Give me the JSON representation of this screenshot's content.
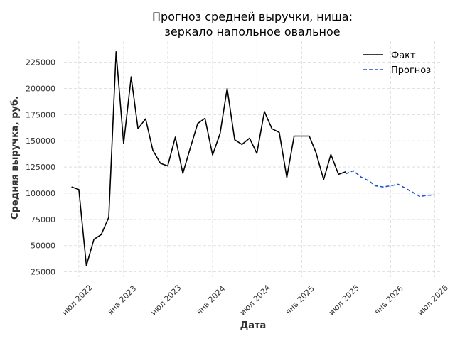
{
  "chart_data": {
    "type": "line",
    "title_lines": [
      "Прогноз средней выручки, ниша:",
      "зеркало напольное овальное"
    ],
    "xlabel": "Дата",
    "ylabel": "Средняя выручка, руб.",
    "ylim": [
      20000,
      245000
    ],
    "xlim": [
      "2022-05-01",
      "2026-08-01"
    ],
    "yticks": [
      25000,
      50000,
      75000,
      100000,
      125000,
      150000,
      175000,
      200000,
      225000
    ],
    "xticks": [
      {
        "date": "2022-07-01",
        "label": "июл 2022"
      },
      {
        "date": "2023-01-01",
        "label": "янв 2023"
      },
      {
        "date": "2023-07-01",
        "label": "июл 2023"
      },
      {
        "date": "2024-01-01",
        "label": "янв 2024"
      },
      {
        "date": "2024-07-01",
        "label": "июл 2024"
      },
      {
        "date": "2025-01-01",
        "label": "янв 2025"
      },
      {
        "date": "2025-07-01",
        "label": "июл 2025"
      },
      {
        "date": "2026-01-01",
        "label": "янв 2026"
      },
      {
        "date": "2026-07-01",
        "label": "июл 2026"
      }
    ],
    "grid": true,
    "legend_position": "top-right",
    "series": [
      {
        "name": "Факт",
        "color": "#000000",
        "style": "solid",
        "x": [
          "2022-06-01",
          "2022-07-01",
          "2022-08-01",
          "2022-09-01",
          "2022-10-01",
          "2022-11-01",
          "2022-12-01",
          "2023-01-01",
          "2023-02-01",
          "2023-03-01",
          "2023-04-01",
          "2023-05-01",
          "2023-06-01",
          "2023-07-01",
          "2023-08-01",
          "2023-09-01",
          "2023-10-01",
          "2023-11-01",
          "2023-12-01",
          "2024-01-01",
          "2024-02-01",
          "2024-03-01",
          "2024-04-01",
          "2024-05-01",
          "2024-06-01",
          "2024-07-01",
          "2024-08-01",
          "2024-09-01",
          "2024-10-01",
          "2024-11-01",
          "2024-12-01",
          "2025-01-01",
          "2025-02-01",
          "2025-03-01",
          "2025-04-01",
          "2025-05-01",
          "2025-06-01",
          "2025-07-01"
        ],
        "values": [
          106000,
          103500,
          31000,
          56000,
          60500,
          77000,
          235000,
          147500,
          211000,
          161500,
          171000,
          141000,
          128500,
          126000,
          153500,
          119000,
          142500,
          166500,
          171500,
          136500,
          157000,
          200000,
          151000,
          146500,
          152500,
          138000,
          178000,
          161500,
          158000,
          115000,
          154500,
          154500,
          154500,
          138500,
          113000,
          137000,
          118000,
          120500
        ]
      },
      {
        "name": "Прогноз",
        "color": "#1f4fd6",
        "style": "dashed",
        "x": [
          "2025-07-01",
          "2025-08-01",
          "2025-09-01",
          "2025-10-01",
          "2025-11-01",
          "2025-12-01",
          "2026-01-01",
          "2026-02-01",
          "2026-03-01",
          "2026-04-01",
          "2026-05-01",
          "2026-06-01",
          "2026-07-01"
        ],
        "values": [
          118500,
          121500,
          115500,
          112000,
          107000,
          106000,
          107000,
          108500,
          105000,
          101000,
          97000,
          98000,
          98500
        ]
      }
    ]
  }
}
